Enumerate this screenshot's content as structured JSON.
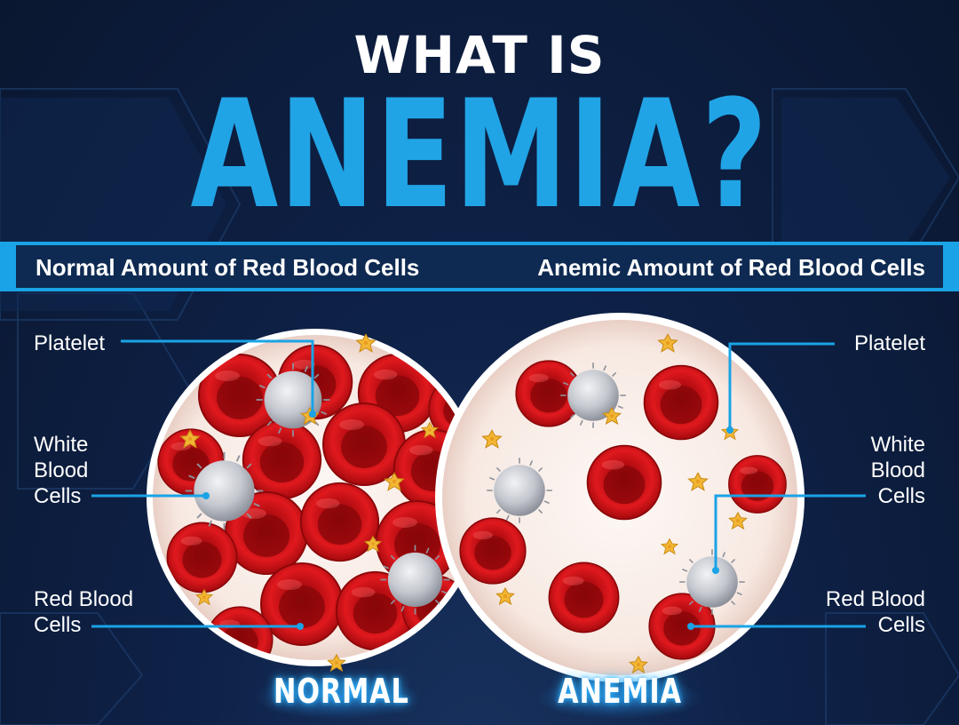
{
  "title": {
    "line1": "WHAT IS",
    "line2": "ANEMIA?"
  },
  "headers": {
    "left": "Normal Amount of Red Blood Cells",
    "right": "Anemic Amount of Red Blood Cells"
  },
  "left_labels": {
    "platelet": "Platelet",
    "white_blood_cells": [
      "White",
      "Blood",
      "Cells"
    ],
    "red_blood_cells": [
      "Red Blood",
      "Cells"
    ]
  },
  "right_labels": {
    "platelet": "Platelet",
    "white_blood_cells": [
      "White",
      "Blood",
      "Cells"
    ],
    "red_blood_cells": [
      "Red Blood",
      "Cells"
    ]
  },
  "badges": {
    "normal": "NORMAL",
    "anemia": "ANEMIA"
  },
  "colors": {
    "accent_blue": "#1aa3e6",
    "background_navy": "#0c1a33",
    "red_cell": "#d61418",
    "white_cell": "#c9ccd3",
    "platelet": "#f2b634",
    "dish": "#fbf1ec"
  }
}
